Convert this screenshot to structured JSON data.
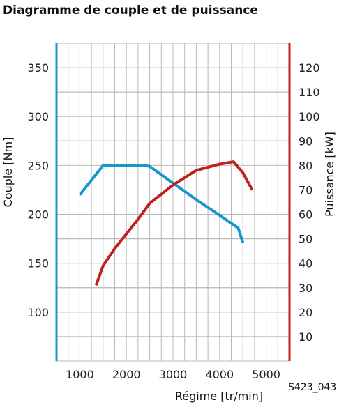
{
  "chart_data": {
    "type": "line",
    "title": "Diagramme de couple et de puissance",
    "xlabel": "Régime [tr/min]",
    "ylabel_left": "Couple [Nm]",
    "ylabel_right": "Puissance [kW]",
    "figure_ref": "S423_043",
    "xlim": [
      500,
      5500
    ],
    "ylim_left": [
      50,
      375
    ],
    "ylim_right": [
      0,
      130
    ],
    "x_ticks": [
      {
        "value": 1000,
        "label": "1000"
      },
      {
        "value": 2000,
        "label": "2000"
      },
      {
        "value": 3000,
        "label": "3000"
      },
      {
        "value": 4000,
        "label": "4000"
      },
      {
        "value": 5000,
        "label": "5000"
      }
    ],
    "y_left_ticks": [
      {
        "value": 100,
        "label": "100"
      },
      {
        "value": 150,
        "label": "150"
      },
      {
        "value": 200,
        "label": "200"
      },
      {
        "value": 250,
        "label": "250"
      },
      {
        "value": 300,
        "label": "300"
      },
      {
        "value": 350,
        "label": "350"
      }
    ],
    "y_right_ticks": [
      {
        "value": 10,
        "label": "10"
      },
      {
        "value": 20,
        "label": "20"
      },
      {
        "value": 30,
        "label": "30"
      },
      {
        "value": 40,
        "label": "40"
      },
      {
        "value": 50,
        "label": "50"
      },
      {
        "value": 60,
        "label": "60"
      },
      {
        "value": 70,
        "label": "70"
      },
      {
        "value": 80,
        "label": "80"
      },
      {
        "value": 90,
        "label": "90"
      },
      {
        "value": 100,
        "label": "100"
      },
      {
        "value": 110,
        "label": "110"
      },
      {
        "value": 120,
        "label": "120"
      }
    ],
    "grid": true,
    "series": [
      {
        "axis": "left",
        "color": "#1896cc",
        "x": [
          1000,
          1500,
          2000,
          2450,
          2500,
          3000,
          3500,
          4000,
          4400,
          4500
        ],
        "y": [
          220,
          250,
          250,
          249.5,
          249,
          232,
          215,
          199,
          186,
          171
        ]
      },
      {
        "axis": "right",
        "color": "#c0211b",
        "x": [
          1350,
          1500,
          1750,
          2000,
          2250,
          2500,
          3000,
          3500,
          4000,
          4300,
          4500,
          4700
        ],
        "y": [
          31,
          39,
          46,
          52,
          58,
          64.5,
          72,
          78,
          80.5,
          81.5,
          77,
          70
        ]
      }
    ],
    "axis_colors": {
      "left": "#1896cc",
      "right": "#c0211b"
    }
  }
}
